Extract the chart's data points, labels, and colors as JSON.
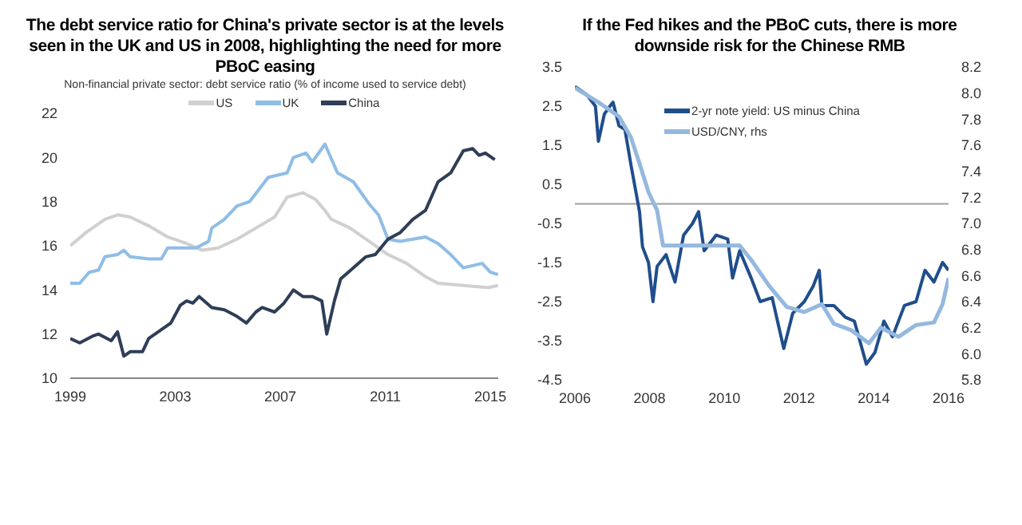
{
  "chart_data": [
    {
      "type": "line",
      "title": "The debt service ratio for China's private sector is at the levels seen in the UK and US in 2008, highlighting the need for more PBoC easing",
      "subtitle": "Non-financial private sector: debt service ratio (% of income used to service debt)",
      "xlim": [
        1999,
        2015.3
      ],
      "xticks": [
        1999,
        2003,
        2007,
        2011,
        2015
      ],
      "ylim": [
        10,
        22
      ],
      "yticks": [
        10,
        12,
        14,
        16,
        18,
        20,
        22
      ],
      "grid": false,
      "legend": "top",
      "marker": "none",
      "line_style": "solid",
      "series": [
        {
          "name": "US",
          "color": "#d0d0d0",
          "x": [
            1999.0,
            1999.6,
            2000.32,
            2000.8,
            2001.28,
            2001.99,
            2002.71,
            2003.43,
            2004.03,
            2004.63,
            2005.35,
            2006.07,
            2006.78,
            2007.26,
            2007.86,
            2008.34,
            2008.7,
            2008.94,
            2009.66,
            2010.38,
            2011.1,
            2011.81,
            2012.53,
            2013.01,
            2013.97,
            2014.93,
            2015.29
          ],
          "values": [
            16.0,
            16.6,
            17.2,
            17.4,
            17.3,
            16.9,
            16.4,
            16.1,
            15.8,
            15.9,
            16.3,
            16.8,
            17.3,
            18.2,
            18.4,
            18.1,
            17.6,
            17.2,
            16.8,
            16.2,
            15.6,
            15.2,
            14.6,
            14.3,
            14.2,
            14.1,
            14.2
          ]
        },
        {
          "name": "UK",
          "color": "#8fbde6",
          "x": [
            1999.0,
            1999.36,
            1999.72,
            2000.08,
            2000.32,
            2000.8,
            2001.04,
            2001.28,
            2001.99,
            2002.47,
            2002.71,
            2003.19,
            2003.79,
            2004.27,
            2004.39,
            2004.87,
            2005.35,
            2005.83,
            2006.54,
            2007.26,
            2007.5,
            2007.98,
            2008.22,
            2008.7,
            2009.18,
            2009.78,
            2010.38,
            2010.74,
            2011.1,
            2011.57,
            2012.05,
            2012.53,
            2013.01,
            2013.49,
            2013.97,
            2014.69,
            2015.0,
            2015.29
          ],
          "values": [
            14.3,
            14.3,
            14.8,
            14.9,
            15.5,
            15.6,
            15.8,
            15.5,
            15.4,
            15.4,
            15.9,
            15.9,
            15.9,
            16.2,
            16.8,
            17.2,
            17.8,
            18.0,
            19.1,
            19.3,
            20.0,
            20.2,
            19.8,
            20.6,
            19.3,
            18.9,
            17.9,
            17.4,
            16.3,
            16.2,
            16.3,
            16.4,
            16.1,
            15.6,
            15.0,
            15.2,
            14.8,
            14.7
          ]
        },
        {
          "name": "China",
          "color": "#2e3e56",
          "x": [
            1999.0,
            1999.36,
            1999.84,
            2000.08,
            2000.56,
            2000.8,
            2001.04,
            2001.28,
            2001.75,
            2001.99,
            2002.47,
            2002.83,
            2003.19,
            2003.43,
            2003.67,
            2003.91,
            2004.39,
            2004.87,
            2005.35,
            2005.71,
            2006.07,
            2006.31,
            2006.78,
            2007.14,
            2007.5,
            2007.86,
            2008.22,
            2008.58,
            2008.77,
            2009.06,
            2009.3,
            2009.78,
            2010.26,
            2010.62,
            2011.1,
            2011.57,
            2012.05,
            2012.53,
            2013.01,
            2013.49,
            2013.97,
            2014.33,
            2014.57,
            2014.81,
            2015.17
          ],
          "values": [
            11.8,
            11.6,
            11.9,
            12.0,
            11.7,
            12.1,
            11.0,
            11.2,
            11.2,
            11.8,
            12.2,
            12.5,
            13.3,
            13.5,
            13.4,
            13.7,
            13.2,
            13.1,
            12.8,
            12.5,
            13.0,
            13.2,
            13.0,
            13.4,
            14.0,
            13.7,
            13.7,
            13.5,
            12.0,
            13.5,
            14.5,
            15.0,
            15.5,
            15.6,
            16.3,
            16.6,
            17.2,
            17.6,
            18.9,
            19.3,
            20.3,
            20.4,
            20.1,
            20.2,
            19.9
          ]
        }
      ]
    },
    {
      "type": "line",
      "title": "If the Fed hikes and the PBoC cuts, there is more downside risk for the Chinese RMB",
      "xlim": [
        2006,
        2016
      ],
      "xticks": [
        2006,
        2008,
        2010,
        2012,
        2014,
        2016
      ],
      "ylim": [
        -4.5,
        3.5
      ],
      "yticks": [
        -4.5,
        -3.5,
        -2.5,
        -1.5,
        -0.5,
        0.5,
        1.5,
        2.5,
        3.5
      ],
      "y2lim": [
        5.8,
        8.2
      ],
      "y2ticks": [
        5.8,
        {
          "value": 6,
          "label": "6.0"
        },
        6.2,
        6.4,
        6.6,
        6.8,
        {
          "value": 7,
          "label": "7.0"
        },
        7.2,
        7.4,
        7.6,
        7.8,
        {
          "value": 8,
          "label": "8.0"
        },
        8.2
      ],
      "grid": false,
      "legend": "top left",
      "marker": "none",
      "line_style": "solid",
      "ref_lines": [
        {
          "axis": "y",
          "value": 0,
          "color": "#a0a0a0"
        }
      ],
      "series": [
        {
          "name": "2-yr note yield: US minus China",
          "color": "#1f4e8c",
          "x": [
            2006.0,
            2006.31,
            2006.55,
            2006.63,
            2006.79,
            2006.94,
            2007.02,
            2007.18,
            2007.34,
            2007.5,
            2007.73,
            2007.81,
            2007.97,
            2008.09,
            2008.2,
            2008.44,
            2008.68,
            2008.91,
            2009.15,
            2009.31,
            2009.46,
            2009.78,
            2010.09,
            2010.22,
            2010.41,
            2010.72,
            2010.96,
            2011.28,
            2011.59,
            2011.83,
            2012.14,
            2012.38,
            2012.54,
            2012.61,
            2012.93,
            2013.24,
            2013.48,
            2013.8,
            2014.03,
            2014.27,
            2014.5,
            2014.82,
            2015.13,
            2015.37,
            2015.61,
            2015.84,
            2016.0
          ],
          "values": [
            3.0,
            2.8,
            2.5,
            1.6,
            2.3,
            2.5,
            2.6,
            2.0,
            1.9,
            1.0,
            -0.2,
            -1.1,
            -1.5,
            -2.5,
            -1.6,
            -1.3,
            -2.0,
            -0.8,
            -0.5,
            -0.2,
            -1.2,
            -0.8,
            -0.9,
            -1.9,
            -1.2,
            -1.9,
            -2.5,
            -2.4,
            -3.7,
            -2.8,
            -2.5,
            -2.1,
            -1.7,
            -2.6,
            -2.6,
            -2.9,
            -3.0,
            -4.1,
            -3.8,
            -3.0,
            -3.4,
            -2.6,
            -2.5,
            -1.7,
            -2.0,
            -1.5,
            -1.7
          ]
        },
        {
          "name": "USD/CNY, rhs",
          "color": "#95b8de",
          "axis": "y2",
          "x": [
            2006.0,
            2006.63,
            2007.18,
            2007.5,
            2007.73,
            2007.97,
            2008.2,
            2008.36,
            2008.68,
            2009.15,
            2010.41,
            2010.72,
            2011.2,
            2011.67,
            2012.14,
            2012.61,
            2012.93,
            2013.4,
            2013.87,
            2014.19,
            2014.66,
            2015.13,
            2015.61,
            2015.84,
            2016.0
          ],
          "values": [
            8.04,
            7.93,
            7.82,
            7.66,
            7.46,
            7.24,
            7.1,
            6.83,
            6.83,
            6.83,
            6.83,
            6.72,
            6.52,
            6.36,
            6.32,
            6.38,
            6.23,
            6.18,
            6.08,
            6.2,
            6.13,
            6.22,
            6.24,
            6.38,
            6.58
          ]
        }
      ]
    }
  ]
}
